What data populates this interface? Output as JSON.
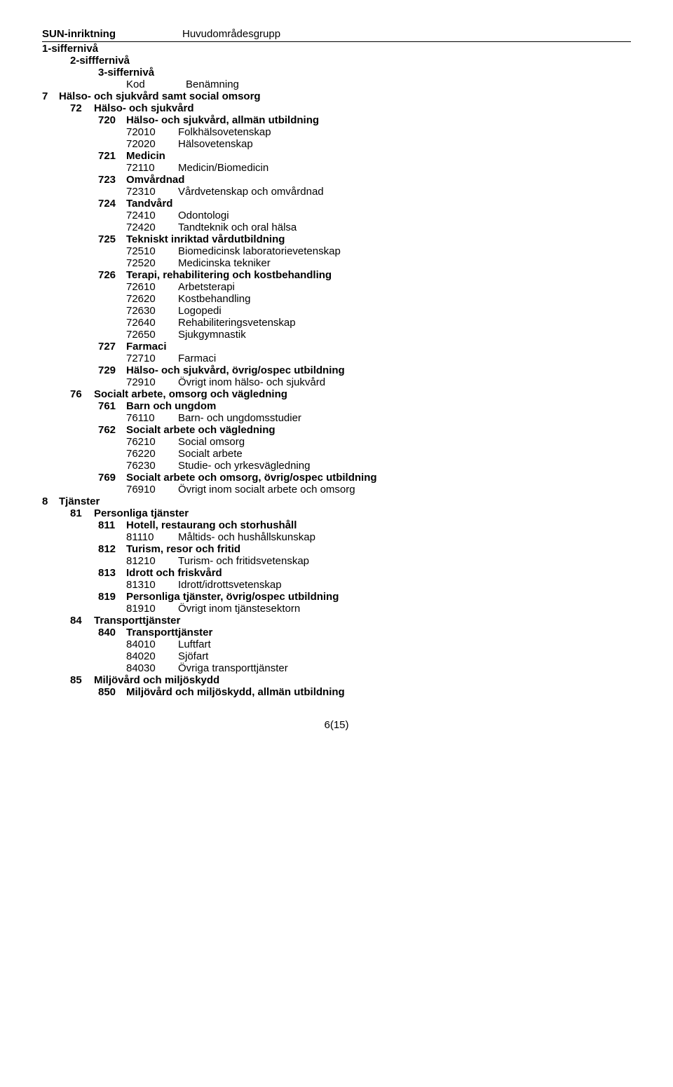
{
  "header": {
    "left": "SUN-inriktning",
    "right": "Huvudområdesgrupp"
  },
  "legend": {
    "level1": "1-siffernivå",
    "level2": "2-sifffernivå",
    "level3": "3-siffernivå",
    "kod": "Kod",
    "benamning": "Benämning"
  },
  "rows": [
    {
      "lvl": 1,
      "code": "7",
      "label": "Hälso- och sjukvård samt social omsorg"
    },
    {
      "lvl": 2,
      "code": "72",
      "label": "Hälso- och sjukvård"
    },
    {
      "lvl": 3,
      "code": "720",
      "label": "Hälso- och sjukvård, allmän utbildning"
    },
    {
      "lvl": 5,
      "code": "72010",
      "label": "Folkhälsovetenskap"
    },
    {
      "lvl": 5,
      "code": "72020",
      "label": "Hälsovetenskap"
    },
    {
      "lvl": 3,
      "code": "721",
      "label": "Medicin"
    },
    {
      "lvl": 5,
      "code": "72110",
      "label": "Medicin/Biomedicin"
    },
    {
      "lvl": 3,
      "code": "723",
      "label": "Omvårdnad"
    },
    {
      "lvl": 5,
      "code": "72310",
      "label": "Vårdvetenskap och omvårdnad"
    },
    {
      "lvl": 3,
      "code": "724",
      "label": "Tandvård"
    },
    {
      "lvl": 5,
      "code": "72410",
      "label": "Odontologi"
    },
    {
      "lvl": 5,
      "code": "72420",
      "label": "Tandteknik och oral hälsa"
    },
    {
      "lvl": 3,
      "code": "725",
      "label": "Tekniskt inriktad vårdutbildning"
    },
    {
      "lvl": 5,
      "code": "72510",
      "label": "Biomedicinsk laboratorievetenskap"
    },
    {
      "lvl": 5,
      "code": "72520",
      "label": "Medicinska tekniker"
    },
    {
      "lvl": 3,
      "code": "726",
      "label": "Terapi, rehabilitering och kostbehandling"
    },
    {
      "lvl": 5,
      "code": "72610",
      "label": "Arbetsterapi"
    },
    {
      "lvl": 5,
      "code": "72620",
      "label": "Kostbehandling"
    },
    {
      "lvl": 5,
      "code": "72630",
      "label": "Logopedi"
    },
    {
      "lvl": 5,
      "code": "72640",
      "label": "Rehabiliteringsvetenskap"
    },
    {
      "lvl": 5,
      "code": "72650",
      "label": "Sjukgymnastik"
    },
    {
      "lvl": 3,
      "code": "727",
      "label": "Farmaci"
    },
    {
      "lvl": 5,
      "code": "72710",
      "label": "Farmaci"
    },
    {
      "lvl": 3,
      "code": "729",
      "label": "Hälso- och sjukvård, övrig/ospec utbildning"
    },
    {
      "lvl": 5,
      "code": "72910",
      "label": "Övrigt inom hälso- och sjukvård"
    },
    {
      "lvl": 2,
      "code": "76",
      "label": "Socialt arbete, omsorg och vägledning"
    },
    {
      "lvl": 3,
      "code": "761",
      "label": "Barn och ungdom"
    },
    {
      "lvl": 5,
      "code": "76110",
      "label": "Barn- och ungdomsstudier"
    },
    {
      "lvl": 3,
      "code": "762",
      "label": "Socialt arbete och vägledning"
    },
    {
      "lvl": 5,
      "code": "76210",
      "label": "Social omsorg"
    },
    {
      "lvl": 5,
      "code": "76220",
      "label": "Socialt arbete"
    },
    {
      "lvl": 5,
      "code": "76230",
      "label": "Studie- och yrkesvägledning"
    },
    {
      "lvl": 3,
      "code": "769",
      "label": "Socialt arbete och omsorg, övrig/ospec utbildning"
    },
    {
      "lvl": 5,
      "code": "76910",
      "label": "Övrigt inom socialt arbete och omsorg"
    },
    {
      "lvl": 1,
      "code": "8",
      "label": "Tjänster"
    },
    {
      "lvl": 2,
      "code": "81",
      "label": "Personliga tjänster"
    },
    {
      "lvl": 3,
      "code": "811",
      "label": "Hotell, restaurang och storhushåll"
    },
    {
      "lvl": 5,
      "code": "81110",
      "label": "Måltids- och hushållskunskap"
    },
    {
      "lvl": 3,
      "code": "812",
      "label": "Turism, resor och fritid"
    },
    {
      "lvl": 5,
      "code": "81210",
      "label": "Turism- och fritidsvetenskap"
    },
    {
      "lvl": 3,
      "code": "813",
      "label": "Idrott och friskvård"
    },
    {
      "lvl": 5,
      "code": "81310",
      "label": "Idrott/idrottsvetenskap"
    },
    {
      "lvl": 3,
      "code": "819",
      "label": "Personliga tjänster, övrig/ospec utbildning"
    },
    {
      "lvl": 5,
      "code": "81910",
      "label": "Övrigt inom tjänstesektorn"
    },
    {
      "lvl": 2,
      "code": "84",
      "label": "Transporttjänster"
    },
    {
      "lvl": 3,
      "code": "840",
      "label": "Transporttjänster"
    },
    {
      "lvl": 5,
      "code": "84010",
      "label": "Luftfart"
    },
    {
      "lvl": 5,
      "code": "84020",
      "label": "Sjöfart"
    },
    {
      "lvl": 5,
      "code": "84030",
      "label": "Övriga transporttjänster"
    },
    {
      "lvl": 2,
      "code": "85",
      "label": "Miljövård och miljöskydd"
    },
    {
      "lvl": 3,
      "code": "850",
      "label": "Miljövård och miljöskydd, allmän utbildning"
    }
  ],
  "footer": "6(15)"
}
